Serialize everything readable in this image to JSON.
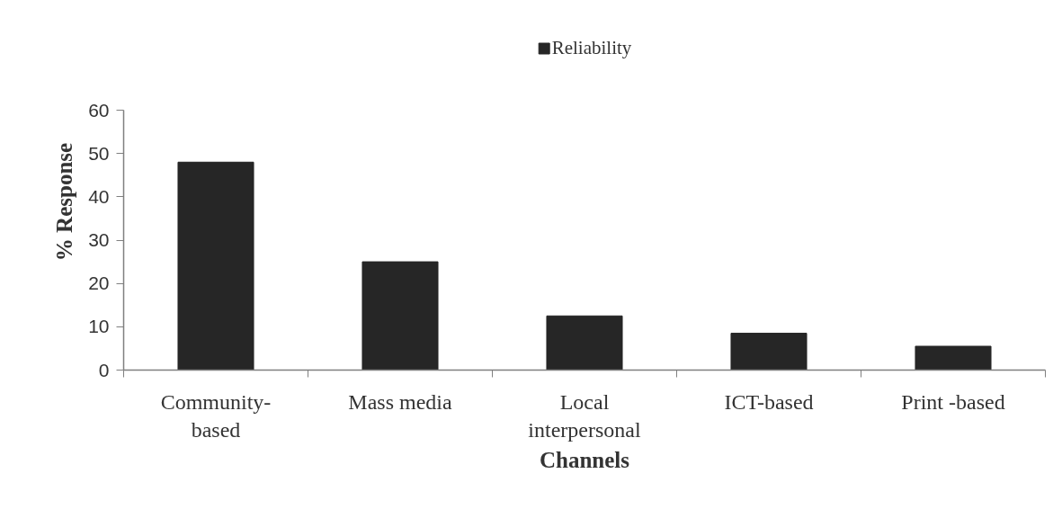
{
  "chart_data": {
    "type": "bar",
    "xlabel": "Channels",
    "ylabel": "% Response",
    "categories": [
      "Community-based",
      "Mass media",
      "Local interpersonal",
      "ICT-based",
      "Print -based"
    ],
    "series": [
      {
        "name": "Reliability",
        "color": "#262626",
        "values": [
          48,
          25,
          12.5,
          8.5,
          5.5
        ]
      }
    ],
    "ylim": [
      0,
      60
    ],
    "yticks": [
      0,
      10,
      20,
      30,
      40,
      50,
      60
    ],
    "grid": false,
    "legend": "top"
  }
}
